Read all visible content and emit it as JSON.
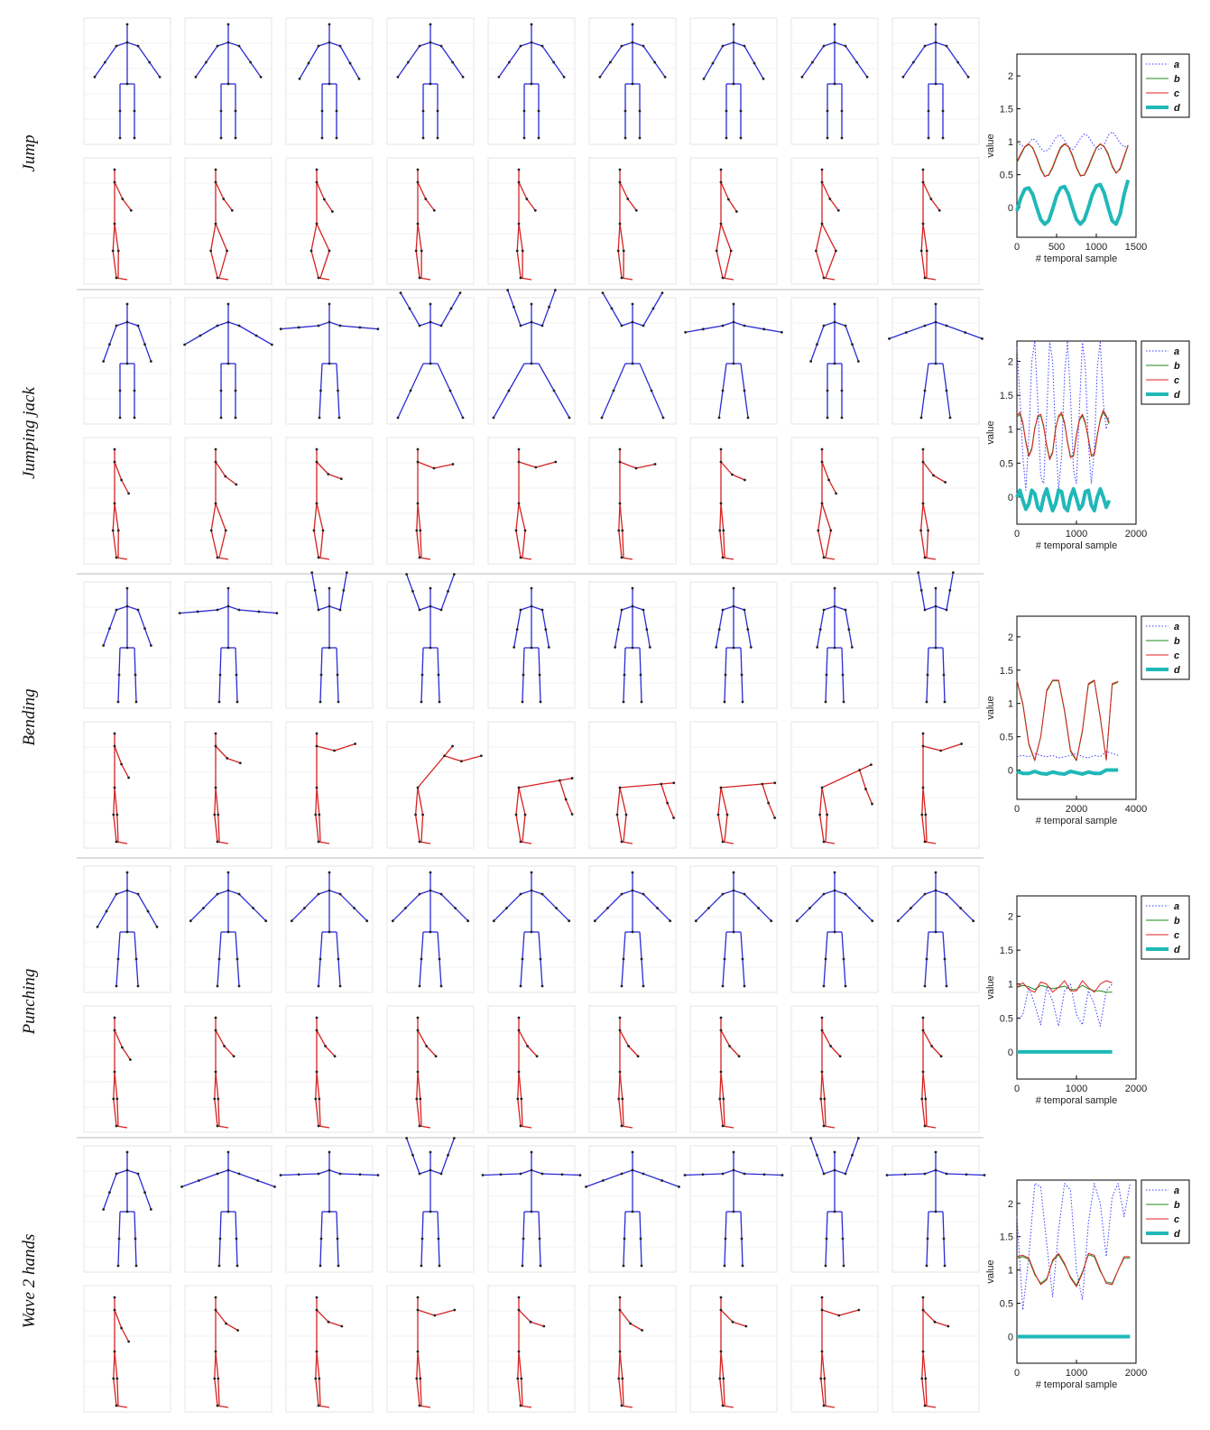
{
  "row_labels": [
    "Jump",
    "Jumping jack",
    "Bending",
    "Punching",
    "Wave 2 hands"
  ],
  "chart_data": [
    {
      "type": "line",
      "xlabel": "# temporal sample",
      "ylabel": "value",
      "xlim": [
        0,
        1500
      ],
      "ylim": [
        -0.45,
        2.33
      ],
      "xticks": [
        0,
        500,
        1000,
        1500
      ],
      "yticks": [
        0,
        0.5,
        1,
        1.5,
        2
      ],
      "x": [
        0,
        50,
        100,
        150,
        200,
        250,
        300,
        350,
        400,
        450,
        500,
        550,
        600,
        650,
        700,
        750,
        800,
        850,
        900,
        950,
        1000,
        1050,
        1100,
        1150,
        1200,
        1250,
        1300,
        1350,
        1400
      ],
      "series": [
        {
          "name": "a",
          "color": "#3b3bff",
          "line_style": "dotted",
          "line_width": 1,
          "values": [
            1.0,
            0.95,
            0.92,
            0.98,
            1.05,
            1.0,
            0.9,
            0.85,
            0.88,
            0.98,
            1.08,
            1.1,
            1.02,
            0.92,
            0.88,
            0.95,
            1.05,
            1.12,
            1.08,
            0.98,
            0.9,
            0.88,
            0.95,
            1.1,
            1.15,
            1.08,
            0.98,
            0.92,
            0.95
          ]
        },
        {
          "name": "b",
          "color": "#1a8a1a",
          "line_style": "solid",
          "line_width": 1,
          "values": [
            0.68,
            0.8,
            0.92,
            0.96,
            0.91,
            0.77,
            0.6,
            0.48,
            0.49,
            0.6,
            0.76,
            0.9,
            0.96,
            0.93,
            0.8,
            0.62,
            0.49,
            0.49,
            0.61,
            0.76,
            0.9,
            0.96,
            0.93,
            0.82,
            0.64,
            0.53,
            0.58,
            0.76,
            0.94
          ]
        },
        {
          "name": "c",
          "color": "#e02020",
          "line_style": "solid",
          "line_width": 1,
          "values": [
            0.7,
            0.82,
            0.93,
            0.97,
            0.9,
            0.75,
            0.58,
            0.47,
            0.5,
            0.62,
            0.78,
            0.92,
            0.97,
            0.92,
            0.78,
            0.6,
            0.48,
            0.5,
            0.63,
            0.78,
            0.91,
            0.97,
            0.92,
            0.8,
            0.62,
            0.52,
            0.6,
            0.78,
            0.95
          ]
        },
        {
          "name": "d",
          "color": "#20b8b8",
          "line_style": "solid",
          "line_width": 4,
          "values": [
            -0.05,
            0.15,
            0.28,
            0.3,
            0.2,
            0.0,
            -0.18,
            -0.25,
            -0.2,
            -0.02,
            0.18,
            0.3,
            0.32,
            0.2,
            0.0,
            -0.18,
            -0.25,
            -0.18,
            0.0,
            0.2,
            0.33,
            0.35,
            0.22,
            0.0,
            -0.2,
            -0.25,
            -0.1,
            0.2,
            0.42
          ]
        }
      ]
    },
    {
      "type": "line",
      "xlabel": "# temporal sample",
      "ylabel": "value",
      "xlim": [
        0,
        2000
      ],
      "ylim": [
        -0.4,
        2.3
      ],
      "xticks": [
        0,
        1000,
        2000
      ],
      "yticks": [
        0,
        0.5,
        1,
        1.5,
        2
      ],
      "x": [
        0,
        50,
        100,
        150,
        200,
        250,
        300,
        350,
        400,
        450,
        500,
        550,
        600,
        650,
        700,
        750,
        800,
        850,
        900,
        950,
        1000,
        1050,
        1100,
        1150,
        1200,
        1250,
        1300,
        1350,
        1400,
        1450,
        1500,
        1550
      ],
      "series": [
        {
          "name": "a",
          "color": "#3b3bff",
          "line_style": "dotted",
          "line_width": 1,
          "values": [
            2.2,
            1.5,
            0.6,
            0.1,
            0.9,
            2.0,
            2.3,
            1.4,
            0.3,
            0.2,
            1.2,
            2.3,
            2.0,
            0.9,
            0.1,
            0.6,
            1.8,
            2.3,
            1.5,
            0.4,
            0.2,
            1.3,
            2.3,
            1.9,
            0.8,
            0.2,
            0.7,
            1.9,
            2.3,
            1.4,
            1.0,
            1.2
          ]
        },
        {
          "name": "b",
          "color": "#1a8a1a",
          "line_style": "solid",
          "line_width": 1,
          "values": [
            1.18,
            1.22,
            1.08,
            0.82,
            0.62,
            0.72,
            1.02,
            1.18,
            1.2,
            1.03,
            0.77,
            0.57,
            0.67,
            1.02,
            1.18,
            1.22,
            1.08,
            0.82,
            0.6,
            0.62,
            0.92,
            1.13,
            1.2,
            1.08,
            0.87,
            0.62,
            0.64,
            0.92,
            1.13,
            1.25,
            1.18,
            1.08
          ]
        },
        {
          "name": "c",
          "color": "#e02020",
          "line_style": "solid",
          "line_width": 1,
          "values": [
            1.2,
            1.25,
            1.1,
            0.8,
            0.6,
            0.7,
            1.0,
            1.2,
            1.22,
            1.05,
            0.75,
            0.55,
            0.65,
            1.0,
            1.2,
            1.25,
            1.1,
            0.8,
            0.58,
            0.6,
            0.9,
            1.15,
            1.22,
            1.1,
            0.85,
            0.6,
            0.62,
            0.9,
            1.15,
            1.28,
            1.2,
            1.1
          ]
        },
        {
          "name": "d",
          "color": "#20b8b8",
          "line_style": "solid",
          "line_width": 4,
          "values": [
            0.0,
            0.1,
            -0.05,
            -0.18,
            -0.1,
            0.1,
            0.05,
            -0.15,
            -0.2,
            0.0,
            0.12,
            -0.05,
            -0.2,
            -0.1,
            0.1,
            0.08,
            -0.15,
            -0.2,
            0.0,
            0.12,
            -0.02,
            -0.18,
            -0.12,
            0.08,
            0.1,
            -0.12,
            -0.2,
            0.0,
            0.12,
            0.0,
            -0.15,
            -0.05
          ]
        }
      ]
    },
    {
      "type": "line",
      "xlabel": "# temporal sample",
      "ylabel": "value",
      "xlim": [
        0,
        4000
      ],
      "ylim": [
        -0.44,
        2.31
      ],
      "xticks": [
        0,
        2000,
        4000
      ],
      "yticks": [
        0,
        0.5,
        1,
        1.5,
        2
      ],
      "x": [
        0,
        200,
        400,
        600,
        800,
        1000,
        1200,
        1400,
        1600,
        1800,
        2000,
        2200,
        2400,
        2600,
        2800,
        3000,
        3200,
        3400
      ],
      "series": [
        {
          "name": "a",
          "color": "#3b3bff",
          "line_style": "dotted",
          "line_width": 1,
          "values": [
            0.2,
            0.22,
            0.2,
            0.25,
            0.22,
            0.2,
            0.22,
            0.18,
            0.2,
            0.22,
            0.25,
            0.2,
            0.18,
            0.22,
            0.2,
            0.28,
            0.25,
            0.22
          ]
        },
        {
          "name": "b",
          "color": "#1a8a1a",
          "line_style": "solid",
          "line_width": 1,
          "values": [
            1.34,
            0.98,
            0.38,
            0.14,
            0.5,
            1.18,
            1.34,
            1.34,
            0.88,
            0.28,
            0.14,
            0.58,
            1.28,
            1.34,
            0.78,
            0.15,
            1.28,
            1.32
          ]
        },
        {
          "name": "c",
          "color": "#e02020",
          "line_style": "solid",
          "line_width": 1,
          "values": [
            1.35,
            1.0,
            0.4,
            0.15,
            0.5,
            1.2,
            1.35,
            1.35,
            0.9,
            0.3,
            0.15,
            0.6,
            1.3,
            1.35,
            0.8,
            0.15,
            1.3,
            1.33
          ]
        },
        {
          "name": "d",
          "color": "#20b8b8",
          "line_style": "solid",
          "line_width": 4,
          "values": [
            -0.02,
            -0.05,
            -0.05,
            -0.02,
            -0.05,
            -0.06,
            -0.03,
            -0.05,
            -0.06,
            -0.02,
            -0.04,
            -0.06,
            -0.03,
            -0.05,
            -0.05,
            0.0,
            0.0,
            0.0
          ]
        }
      ]
    },
    {
      "type": "line",
      "xlabel": "# temporal sample",
      "ylabel": "value",
      "xlim": [
        0,
        2000
      ],
      "ylim": [
        -0.4,
        2.3
      ],
      "xticks": [
        0,
        1000,
        2000
      ],
      "yticks": [
        0,
        0.5,
        1,
        1.5,
        2
      ],
      "x": [
        0,
        100,
        200,
        300,
        400,
        500,
        600,
        700,
        800,
        900,
        1000,
        1100,
        1200,
        1300,
        1400,
        1500,
        1600
      ],
      "series": [
        {
          "name": "a",
          "color": "#3b3bff",
          "line_style": "dotted",
          "line_width": 1,
          "values": [
            0.45,
            0.55,
            0.95,
            0.7,
            0.4,
            0.95,
            0.75,
            0.38,
            0.9,
            1.0,
            0.55,
            0.4,
            0.9,
            0.7,
            0.38,
            0.9,
            1.0
          ]
        },
        {
          "name": "b",
          "color": "#1a8a1a",
          "line_style": "solid",
          "line_width": 1,
          "values": [
            0.95,
            0.98,
            0.96,
            0.92,
            0.98,
            0.96,
            0.93,
            0.95,
            0.97,
            0.92,
            0.92,
            0.98,
            0.93,
            0.9,
            0.9,
            0.88,
            0.88
          ]
        },
        {
          "name": "c",
          "color": "#e02020",
          "line_style": "solid",
          "line_width": 1,
          "values": [
            0.95,
            1.02,
            0.92,
            0.88,
            1.03,
            1.0,
            0.88,
            0.95,
            1.05,
            0.9,
            0.9,
            1.05,
            0.95,
            0.88,
            1.0,
            1.05,
            1.02
          ]
        },
        {
          "name": "d",
          "color": "#20b8b8",
          "line_style": "solid",
          "line_width": 4,
          "values": [
            0,
            0,
            0,
            0,
            0,
            0,
            0,
            0,
            0,
            0,
            0,
            0,
            0,
            0,
            0,
            0,
            0
          ]
        }
      ]
    },
    {
      "type": "line",
      "xlabel": "# temporal sample",
      "ylabel": "value",
      "xlim": [
        0,
        2000
      ],
      "ylim": [
        -0.4,
        2.35
      ],
      "xticks": [
        0,
        1000,
        2000
      ],
      "yticks": [
        0,
        0.5,
        1,
        1.5,
        2
      ],
      "x": [
        0,
        100,
        200,
        300,
        400,
        500,
        600,
        700,
        800,
        900,
        1000,
        1100,
        1200,
        1300,
        1400,
        1500,
        1600,
        1700,
        1800,
        1900
      ],
      "series": [
        {
          "name": "a",
          "color": "#3b3bff",
          "line_style": "dotted",
          "line_width": 1,
          "values": [
            1.8,
            0.4,
            1.2,
            2.3,
            2.25,
            1.4,
            0.6,
            1.6,
            2.3,
            2.2,
            1.0,
            0.55,
            1.7,
            2.3,
            2.0,
            1.2,
            2.1,
            2.3,
            1.8,
            2.3
          ]
        },
        {
          "name": "b",
          "color": "#1a8a1a",
          "line_style": "solid",
          "line_width": 1,
          "values": [
            1.18,
            1.2,
            1.16,
            0.93,
            0.8,
            0.87,
            1.13,
            1.23,
            1.08,
            0.9,
            0.77,
            0.97,
            1.23,
            1.2,
            0.98,
            0.82,
            0.8,
            1.0,
            1.18,
            1.18
          ]
        },
        {
          "name": "c",
          "color": "#e02020",
          "line_style": "solid",
          "line_width": 1,
          "values": [
            1.2,
            1.22,
            1.18,
            0.95,
            0.78,
            0.85,
            1.15,
            1.25,
            1.1,
            0.88,
            0.75,
            0.95,
            1.25,
            1.22,
            1.0,
            0.8,
            0.78,
            1.0,
            1.2,
            1.2
          ]
        },
        {
          "name": "d",
          "color": "#20b8b8",
          "line_style": "solid",
          "line_width": 4,
          "values": [
            0,
            0,
            0,
            0,
            0,
            0,
            0,
            0,
            0,
            0,
            0,
            0,
            0,
            0,
            0,
            0,
            0,
            0,
            0,
            0
          ]
        }
      ]
    }
  ]
}
